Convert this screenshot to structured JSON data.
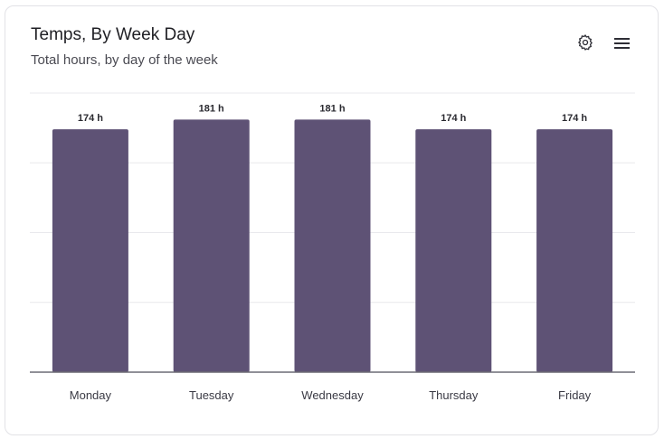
{
  "header": {
    "title": "Temps, By Week Day",
    "subtitle": "Total hours, by day of the week"
  },
  "icons": {
    "settings": "gear-icon",
    "menu": "hamburger-menu-icon"
  },
  "colors": {
    "bar": "#5e5275",
    "grid": "#e8e8ec",
    "axis": "#6b6b75"
  },
  "chart_data": {
    "type": "bar",
    "categories": [
      "Monday",
      "Tuesday",
      "Wednesday",
      "Thursday",
      "Friday"
    ],
    "values": [
      174,
      181,
      181,
      174,
      174
    ],
    "labels": [
      "174 h",
      "181 h",
      "181 h",
      "174 h",
      "174 h"
    ],
    "unit": "h",
    "title": "Temps, By Week Day",
    "subtitle": "Total hours, by day of the week",
    "xlabel": "",
    "ylabel": "",
    "ylim": [
      0,
      200
    ],
    "grid": true,
    "ytick_step": 50
  }
}
